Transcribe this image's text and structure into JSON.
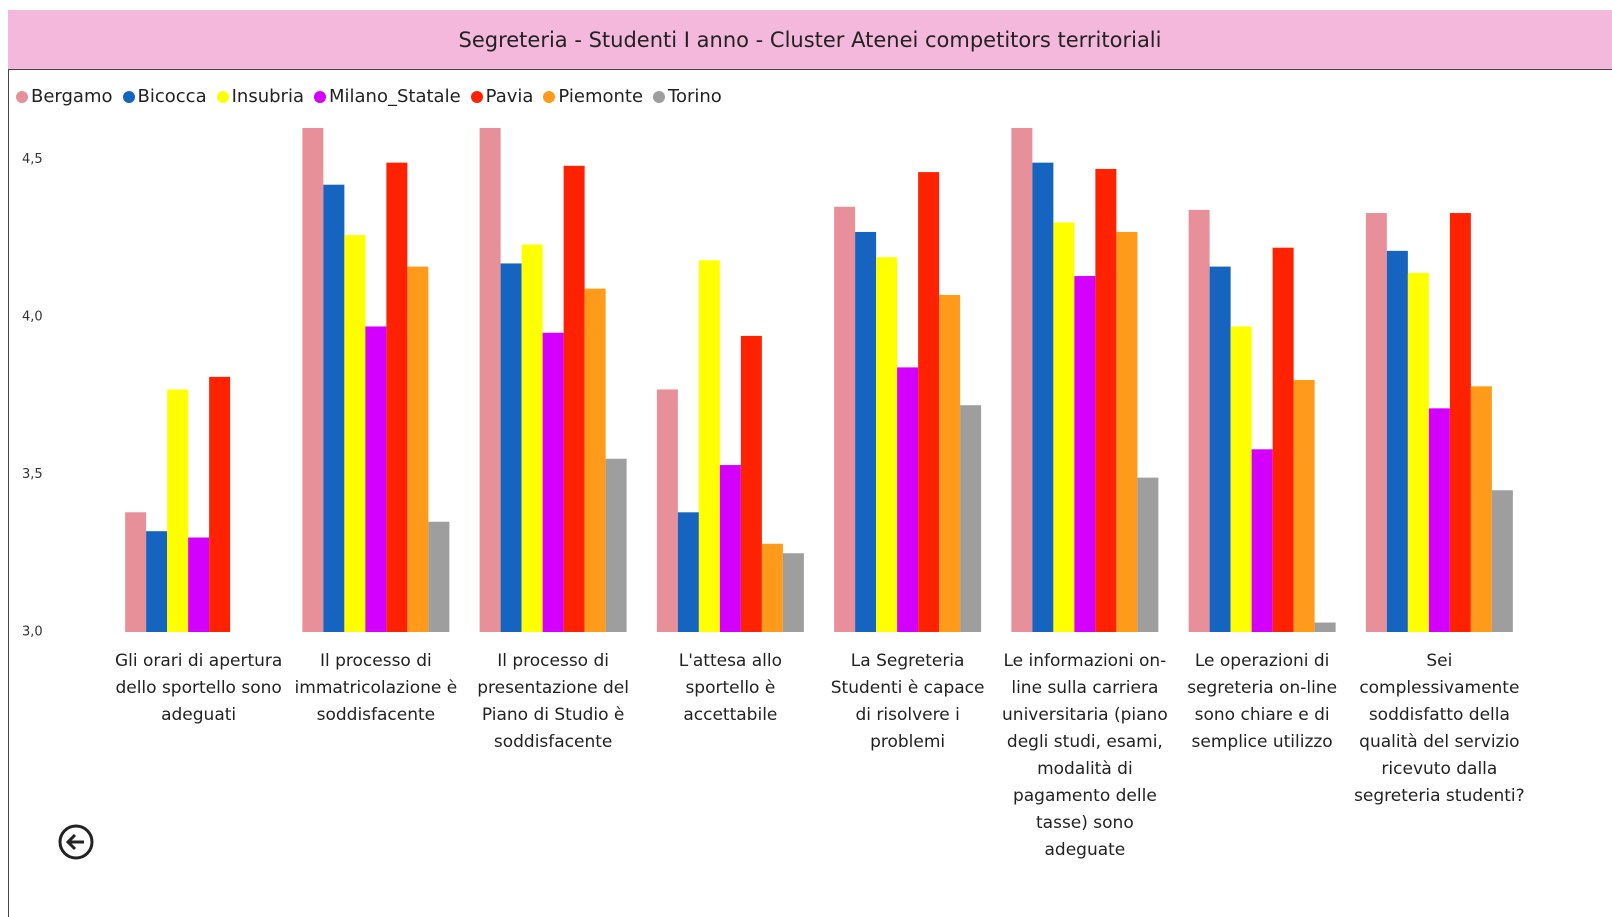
{
  "chart_data": {
    "type": "bar",
    "title": "Segreteria  - Studenti I anno - Cluster Atenei competitors territoriali",
    "categories": [
      "Gli orari di apertura dello sportello sono adeguati",
      "Il processo di immatricolazione è soddisfacente",
      "Il processo di presentazione del Piano di Studio è soddisfacente",
      "L'attesa allo sportello è accettabile",
      "La Segreteria Studenti è capace di risolvere i problemi",
      "Le informazioni on-line sulla carriera universitaria (piano degli studi, esami, modalità di pagamento delle tasse) sono adeguate",
      "Le operazioni di segreteria on-line sono chiare e di semplice utilizzo",
      "Sei complessivamente soddisfatto della qualità del servizio ricevuto dalla segreteria studenti?"
    ],
    "series": [
      {
        "name": "Bergamo",
        "color": "#e8909a",
        "values": [
          3.38,
          4.6,
          4.6,
          3.77,
          4.35,
          4.6,
          4.34,
          4.33
        ]
      },
      {
        "name": "Bicocca",
        "color": "#1565c0",
        "values": [
          3.32,
          4.42,
          4.17,
          3.38,
          4.27,
          4.49,
          4.16,
          4.21
        ]
      },
      {
        "name": "Insubria",
        "color": "#ffff00",
        "values": [
          3.77,
          4.26,
          4.23,
          4.18,
          4.19,
          4.3,
          3.97,
          4.14
        ]
      },
      {
        "name": "Milano_Statale",
        "color": "#d400ff",
        "values": [
          3.3,
          3.97,
          3.95,
          3.53,
          3.84,
          4.13,
          3.58,
          3.71
        ]
      },
      {
        "name": "Pavia",
        "color": "#ff2200",
        "values": [
          3.81,
          4.49,
          4.48,
          3.94,
          4.46,
          4.47,
          4.22,
          4.33
        ]
      },
      {
        "name": "Piemonte",
        "color": "#ff9a1a",
        "values": [
          null,
          4.16,
          4.09,
          3.28,
          4.07,
          4.27,
          3.8,
          3.78
        ]
      },
      {
        "name": "Torino",
        "color": "#9e9e9e",
        "values": [
          null,
          3.35,
          3.55,
          3.25,
          3.72,
          3.49,
          3.03,
          3.45
        ]
      }
    ],
    "ylim": [
      3,
      4.6
    ],
    "yticks": [
      {
        "value": 3,
        "label": "3,0"
      },
      {
        "value": 3.5,
        "label": "3,5"
      },
      {
        "value": 4,
        "label": "4,0"
      },
      {
        "value": 4.5,
        "label": "4,5"
      }
    ],
    "grid": false
  }
}
